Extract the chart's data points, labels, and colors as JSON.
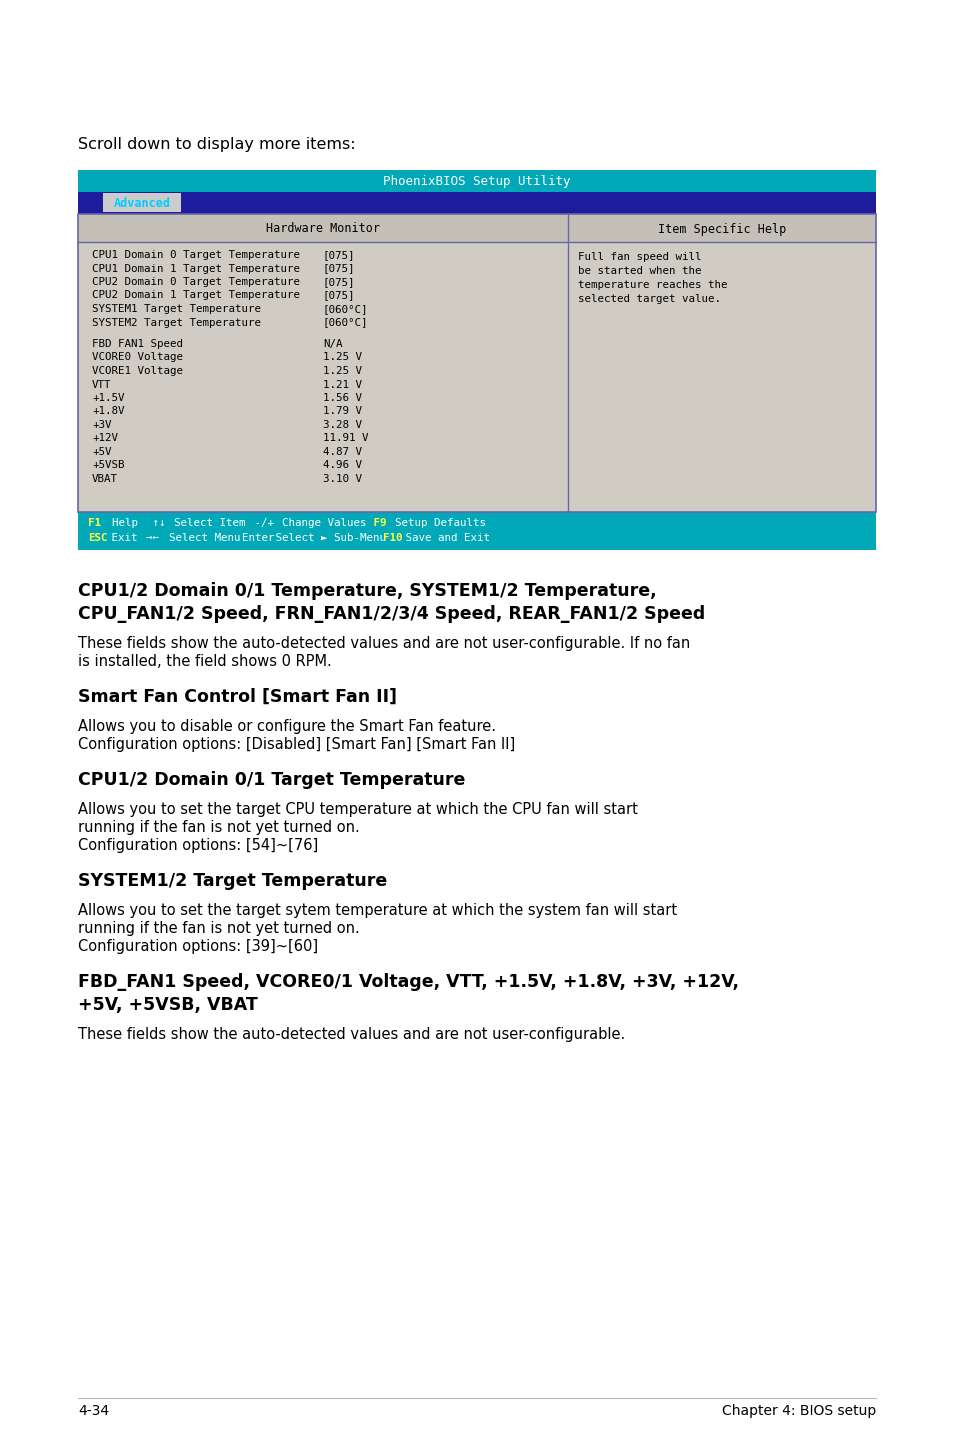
{
  "page_bg": "#ffffff",
  "scroll_text": "Scroll down to display more items:",
  "bios_title": "PhoenixBIOS Setup Utility",
  "bios_title_bg": "#00a8b8",
  "bios_title_color": "#ffffff",
  "menu_tab": "Advanced",
  "menu_tab_bg": "#1c1c9c",
  "menu_tab_color": "#00ccff",
  "menu_tab_bg2": "#cccccc",
  "col1_header": "Hardware Monitor",
  "col2_header": "Item Specific Help",
  "table_bg": "#d0ccc4",
  "table_border": "#6666aa",
  "bios_rows": [
    [
      "CPU1 Domain 0 Target Temperature",
      "[075]"
    ],
    [
      "CPU1 Domain 1 Target Temperature",
      "[075]"
    ],
    [
      "CPU2 Domain 0 Target Temperature",
      "[075]"
    ],
    [
      "CPU2 Domain 1 Target Temperature",
      "[075]"
    ],
    [
      "SYSTEM1 Target Temperature",
      "[060°C]"
    ],
    [
      "SYSTEM2 Target Temperature",
      "[060°C]"
    ],
    [
      "",
      ""
    ],
    [
      "FBD FAN1 Speed",
      "N/A"
    ],
    [
      "VCORE0 Voltage",
      "1.25 V"
    ],
    [
      "VCORE1 Voltage",
      "1.25 V"
    ],
    [
      "VTT",
      "1.21 V"
    ],
    [
      "+1.5V",
      "1.56 V"
    ],
    [
      "+1.8V",
      "1.79 V"
    ],
    [
      "+3V",
      "3.28 V"
    ],
    [
      "+12V",
      "11.91 V"
    ],
    [
      "+5V",
      "4.87 V"
    ],
    [
      "+5VSB",
      "4.96 V"
    ],
    [
      "VBAT",
      "3.10 V"
    ]
  ],
  "help_lines": [
    "Full fan speed will",
    "be started when the",
    "temperature reaches the",
    "selected target value."
  ],
  "footer_bg": "#00a8b8",
  "footer_color": "#ffffff",
  "footer_key_color": "#ffff44",
  "footer_line1": [
    [
      "F1",
      true
    ],
    [
      "  Help",
      false
    ],
    [
      "   ↑↓",
      false
    ],
    [
      "  Select Item",
      false
    ],
    [
      "   -/+",
      false
    ],
    [
      "  Change Values",
      false
    ],
    [
      "   F9",
      true
    ],
    [
      "  Setup Defaults",
      false
    ]
  ],
  "footer_line2": [
    [
      "ESC",
      true
    ],
    [
      " Exit",
      false
    ],
    [
      "  →←",
      false
    ],
    [
      "  Select Menu",
      false
    ],
    [
      "  Enter",
      false
    ],
    [
      " Select ► Sub-Menu",
      false
    ],
    [
      "  F10",
      true
    ],
    [
      " Save and Exit",
      false
    ]
  ],
  "sections": [
    {
      "title": "CPU1/2 Domain 0/1 Temperature, SYSTEM1/2 Temperature,\nCPU_FAN1/2 Speed, FRN_FAN1/2/3/4 Speed, REAR_FAN1/2 Speed",
      "body": "These fields show the auto-detected values and are not user-configurable. If no fan\nis installed, the field shows 0 RPM."
    },
    {
      "title": "Smart Fan Control [Smart Fan II]",
      "body": "Allows you to disable or configure the Smart Fan feature.\nConfiguration options: [Disabled] [Smart Fan] [Smart Fan II]"
    },
    {
      "title": "CPU1/2 Domain 0/1 Target Temperature",
      "body": "Allows you to set the target CPU temperature at which the CPU fan will start\nrunning if the fan is not yet turned on.\nConfiguration options: [54]~[76]"
    },
    {
      "title": "SYSTEM1/2 Target Temperature",
      "body": "Allows you to set the target sytem temperature at which the system fan will start\nrunning if the fan is not yet turned on.\nConfiguration options: [39]~[60]"
    },
    {
      "title": "FBD_FAN1 Speed, VCORE0/1 Voltage, VTT, +1.5V, +1.8V, +3V, +12V,\n+5V, +5VSB, VBAT",
      "body": "These fields show the auto-detected values and are not user-configurable."
    }
  ],
  "page_num_left": "4-34",
  "page_num_right": "Chapter 4: BIOS setup"
}
